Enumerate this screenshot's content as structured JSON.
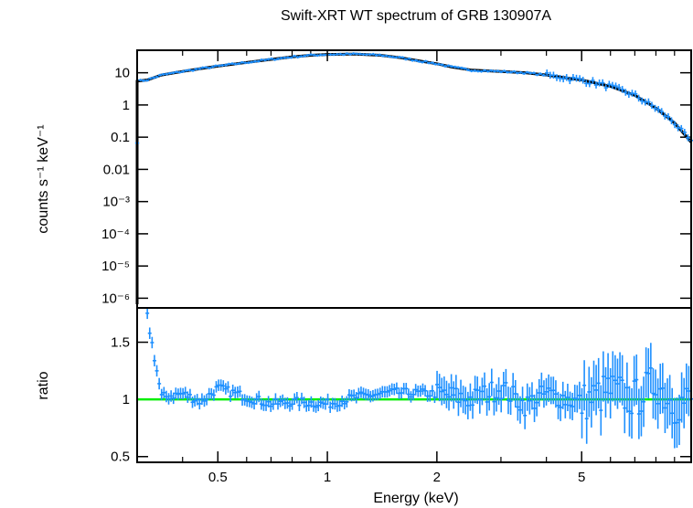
{
  "chart_data": [
    {
      "type": "scatter",
      "title": "Swift-XRT WT spectrum of GRB 130907A",
      "ylabel": "counts s⁻¹ keV⁻¹",
      "xlabel": "",
      "xscale": "log",
      "yscale": "log",
      "xlim": [
        0.3,
        10
      ],
      "ylim": [
        5e-07,
        50
      ],
      "y_ticks": [
        {
          "value": 10,
          "label": "10"
        },
        {
          "value": 1,
          "label": "1"
        },
        {
          "value": 0.1,
          "label": "0.1"
        },
        {
          "value": 0.01,
          "label": "0.01"
        },
        {
          "value": 0.001,
          "label": "10⁻³"
        },
        {
          "value": 0.0001,
          "label": "10⁻⁴"
        },
        {
          "value": 1e-05,
          "label": "10⁻⁵"
        },
        {
          "value": 1e-06,
          "label": "10⁻⁶"
        }
      ],
      "series": [
        {
          "kind": "data",
          "color": "#1e90ff",
          "x": [
            0.3,
            0.32,
            0.35,
            0.4,
            0.45,
            0.5,
            0.6,
            0.7,
            0.8,
            0.9,
            1.0,
            1.2,
            1.4,
            1.6,
            1.8,
            2.0,
            2.2,
            2.5,
            3.0,
            3.5,
            4.0,
            5.0,
            6.0,
            7.0,
            8.0,
            9.0,
            10.0
          ],
          "y": [
            5.5,
            6.0,
            8.5,
            11,
            13.5,
            16,
            21,
            26,
            31,
            35,
            37,
            38,
            35,
            29,
            23,
            19,
            15,
            12,
            11,
            10,
            8.5,
            6,
            3.8,
            2,
            0.8,
            0.28,
            0.07
          ]
        },
        {
          "kind": "model",
          "color": "#000000",
          "x": [
            0.3,
            0.32,
            0.35,
            0.4,
            0.45,
            0.5,
            0.6,
            0.7,
            0.8,
            0.9,
            1.0,
            1.2,
            1.4,
            1.6,
            1.8,
            2.0,
            2.2,
            2.5,
            3.0,
            3.5,
            4.0,
            5.0,
            6.0,
            7.0,
            8.0,
            9.0,
            10.0
          ],
          "y": [
            5.5,
            6.0,
            8.5,
            11,
            13.5,
            16,
            21,
            26,
            31,
            35,
            37,
            38,
            35,
            29,
            23,
            19,
            15,
            12,
            11,
            10,
            8.5,
            6,
            3.8,
            2,
            0.8,
            0.28,
            0.07
          ]
        }
      ]
    },
    {
      "type": "scatter",
      "xlabel": "Energy (keV)",
      "ylabel": "ratio",
      "xscale": "log",
      "xlim": [
        0.3,
        10
      ],
      "ylim": [
        0.45,
        1.8
      ],
      "x_ticks": [
        {
          "value": 0.5,
          "label": "0.5"
        },
        {
          "value": 1,
          "label": "1"
        },
        {
          "value": 2,
          "label": "2"
        },
        {
          "value": 5,
          "label": "5"
        }
      ],
      "y_ticks": [
        {
          "value": 1.5,
          "label": "1.5"
        },
        {
          "value": 1,
          "label": "1"
        },
        {
          "value": 0.5,
          "label": "0.5"
        }
      ],
      "reference_line": {
        "y": 1,
        "color": "#00ee00"
      },
      "series": [
        {
          "kind": "ratio",
          "color": "#1e90ff",
          "x": [
            0.32,
            0.35,
            0.4,
            0.45,
            0.5,
            0.6,
            0.7,
            0.8,
            1.0,
            1.2,
            1.5,
            2.0,
            2.5,
            3.0,
            3.5,
            4.0,
            5.0,
            6.0,
            7.0,
            8.0,
            9.0,
            10.0
          ],
          "y": [
            1.72,
            1.02,
            1.05,
            0.98,
            1.1,
            1.02,
            0.96,
            0.98,
            0.96,
            1.02,
            1.06,
            1.05,
            1.0,
            1.1,
            0.95,
            1.05,
            0.97,
            1.08,
            1.0,
            1.15,
            0.95,
            1.0
          ]
        }
      ]
    }
  ]
}
